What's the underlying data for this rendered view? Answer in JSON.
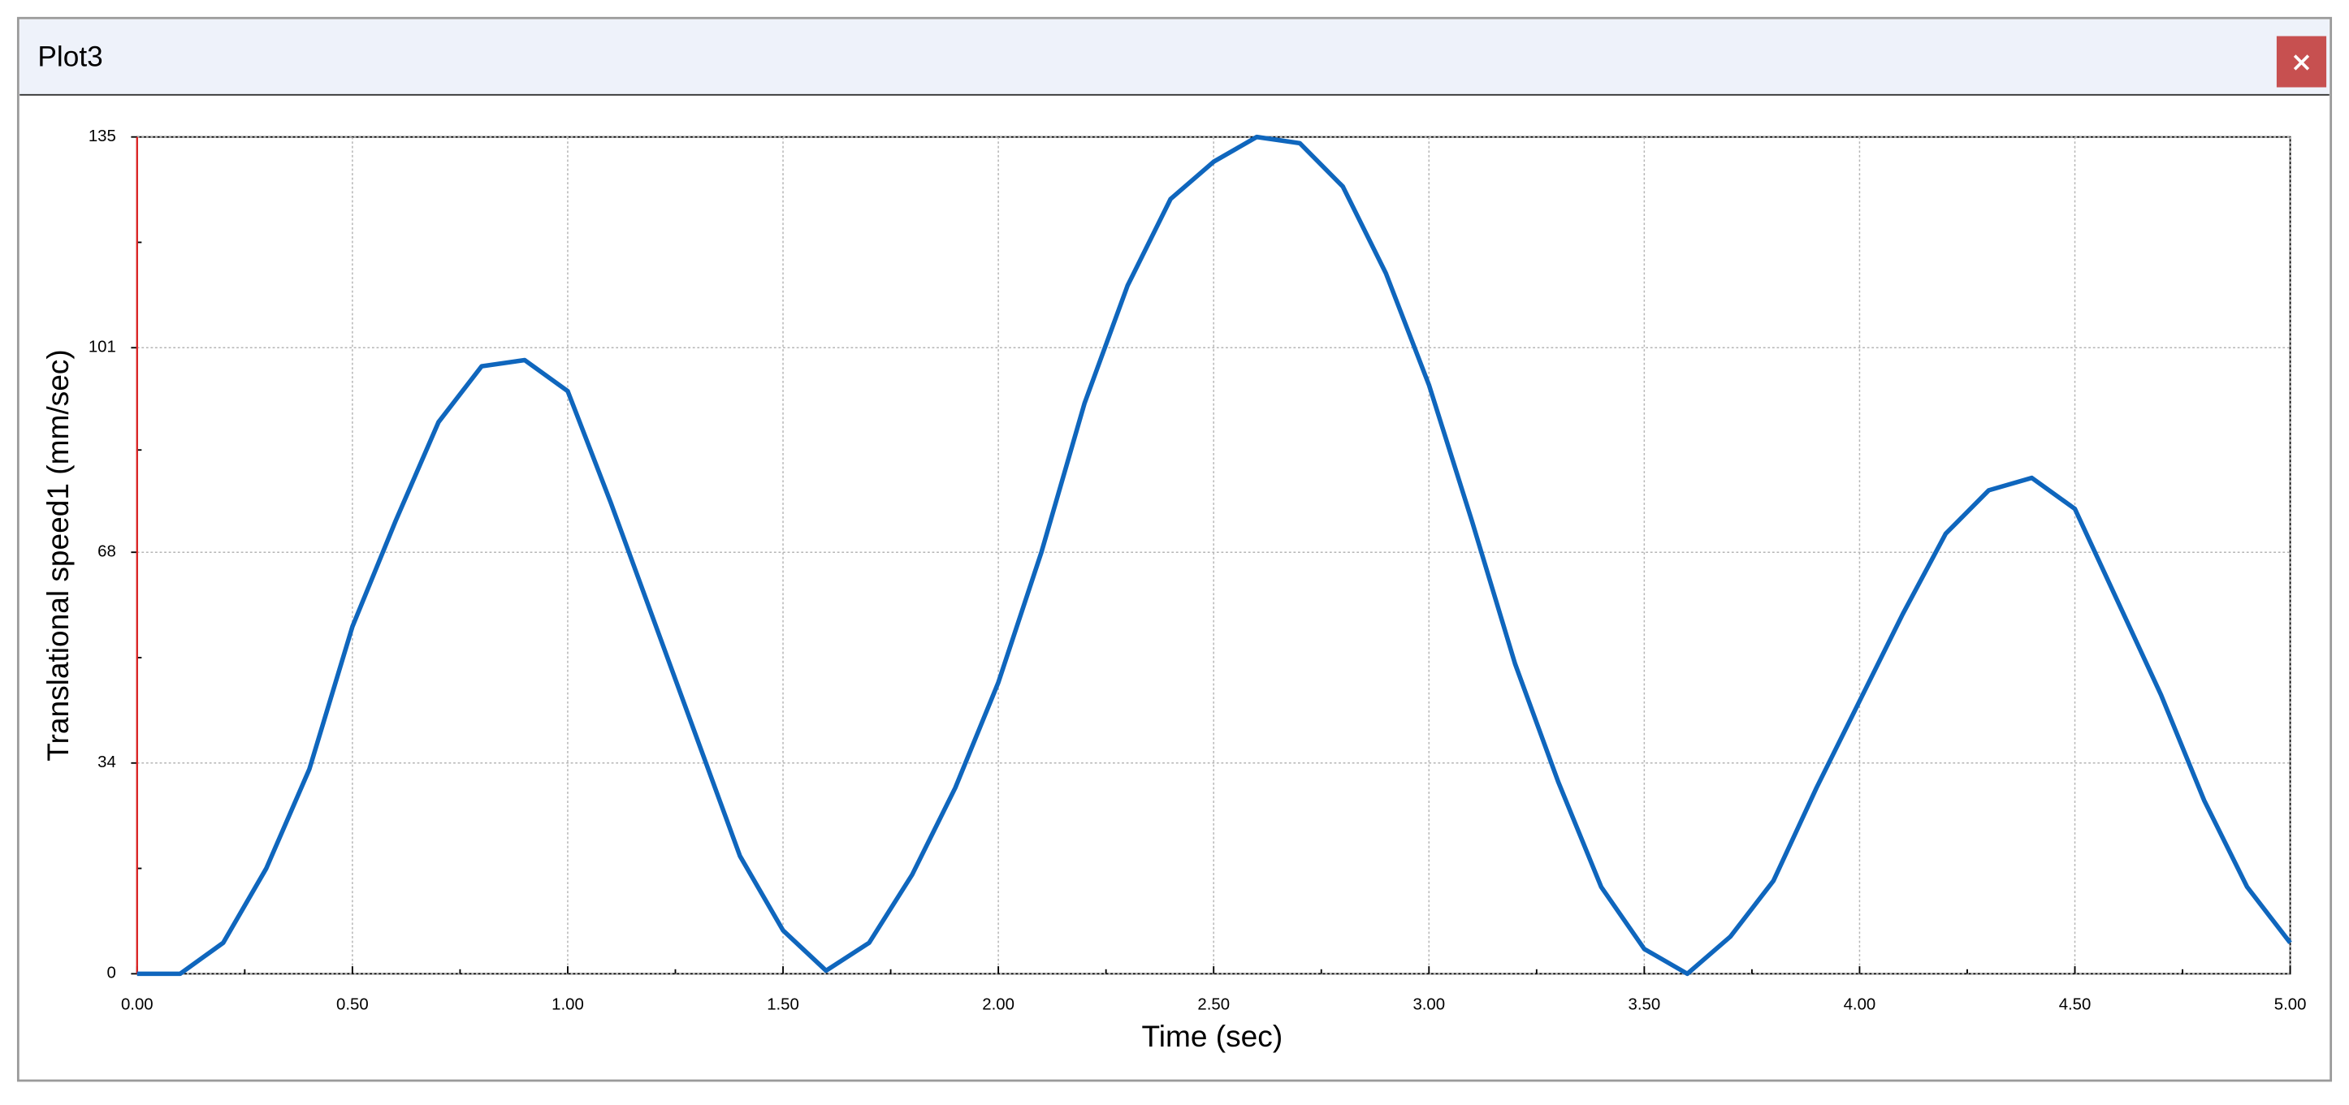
{
  "window": {
    "title": "Plot3"
  },
  "chart_data": {
    "type": "line",
    "xlabel": "Time (sec)",
    "ylabel": "Translational speed1 (mm/sec)",
    "x": [
      0.0,
      0.1,
      0.2,
      0.3,
      0.4,
      0.5,
      0.6,
      0.7,
      0.8,
      0.9,
      1.0,
      1.1,
      1.2,
      1.3,
      1.4,
      1.5,
      1.6,
      1.7,
      1.8,
      1.9,
      2.0,
      2.1,
      2.2,
      2.3,
      2.4,
      2.5,
      2.6,
      2.7,
      2.8,
      2.9,
      3.0,
      3.1,
      3.2,
      3.3,
      3.4,
      3.5,
      3.6,
      3.7,
      3.8,
      3.9,
      4.0,
      4.1,
      4.2,
      4.3,
      4.4,
      4.5,
      4.6,
      4.7,
      4.8,
      4.9,
      5.0
    ],
    "series": [
      {
        "name": "Translational speed1",
        "color": "#0f66bd",
        "values": [
          0,
          0,
          5,
          17,
          33,
          56,
          73,
          89,
          98,
          99,
          94,
          76,
          57,
          38,
          19,
          7,
          0.5,
          5,
          16,
          30,
          47,
          68,
          92,
          111,
          125,
          131,
          135,
          134,
          127,
          113,
          95,
          73,
          50,
          31,
          14,
          4,
          0,
          6,
          15,
          30,
          44,
          58,
          71,
          78,
          80,
          75,
          60,
          45,
          28,
          14,
          5
        ]
      }
    ],
    "xlim": [
      0,
      5
    ],
    "ylim": [
      0,
      135
    ],
    "xticks": [
      {
        "value": 0,
        "label": "0.00"
      },
      {
        "value": 0.5,
        "label": "0.50"
      },
      {
        "value": 1,
        "label": "1.00"
      },
      {
        "value": 1.5,
        "label": "1.50"
      },
      {
        "value": 2,
        "label": "2.00"
      },
      {
        "value": 2.5,
        "label": "2.50"
      },
      {
        "value": 3,
        "label": "3.00"
      },
      {
        "value": 3.5,
        "label": "3.50"
      },
      {
        "value": 4,
        "label": "4.00"
      },
      {
        "value": 4.5,
        "label": "4.50"
      },
      {
        "value": 5,
        "label": "5.00"
      }
    ],
    "yticks": [
      0,
      34,
      68,
      101,
      135
    ],
    "grid": true
  }
}
